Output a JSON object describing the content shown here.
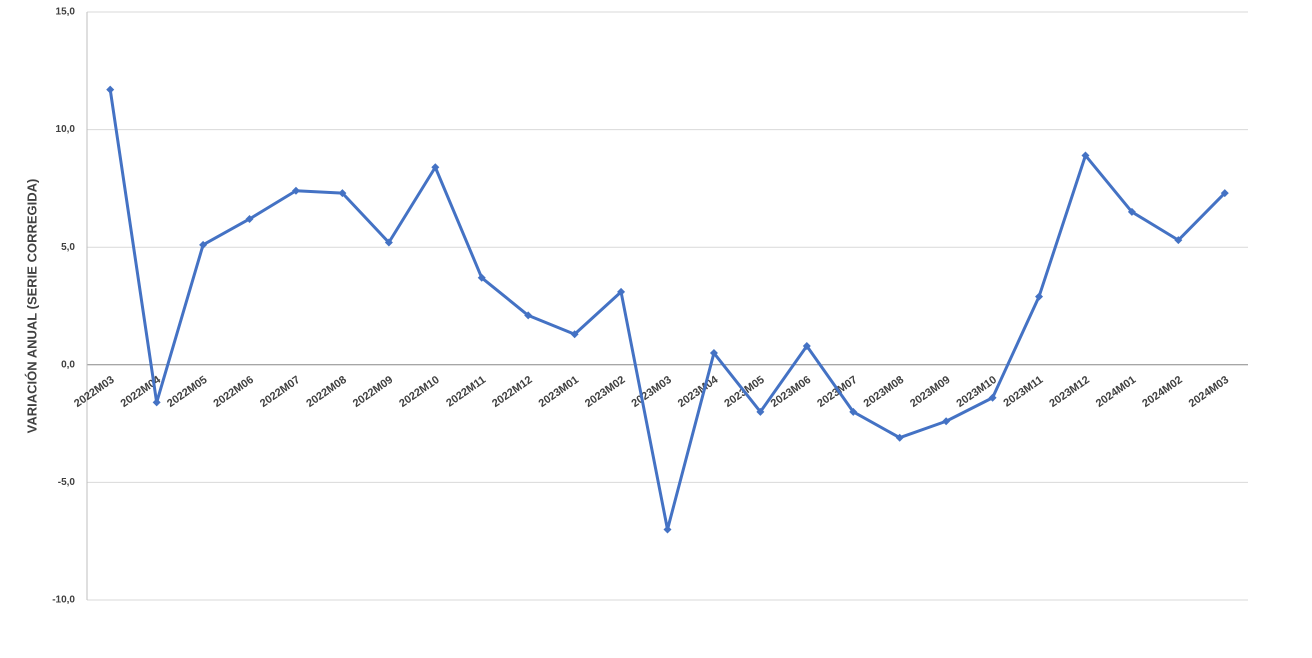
{
  "chart_data": {
    "type": "line",
    "y_label": "VARIACIÓN ANUAL (SERIE CORREGIDA)",
    "categories": [
      "2022M03",
      "2022M04",
      "2022M05",
      "2022M06",
      "2022M07",
      "2022M08",
      "2022M09",
      "2022M10",
      "2022M11",
      "2022M12",
      "2023M01",
      "2023M02",
      "2023M03",
      "2023M04",
      "2023M05",
      "2023M06",
      "2023M07",
      "2023M08",
      "2023M09",
      "2023M10",
      "2023M11",
      "2023M12",
      "2024M01",
      "2024M02",
      "2024M03"
    ],
    "values": [
      11.7,
      -1.6,
      5.1,
      6.2,
      7.4,
      7.3,
      5.2,
      8.4,
      3.7,
      2.1,
      1.3,
      3.1,
      -7.0,
      0.5,
      -2.0,
      0.8,
      -2.0,
      -3.1,
      -2.4,
      -1.4,
      2.9,
      8.9,
      6.5,
      5.3,
      7.3
    ],
    "color": "#4472c4",
    "ylim": [
      -10,
      15
    ],
    "yticks": [
      {
        "value": -10,
        "label": "-10,0"
      },
      {
        "value": -5,
        "label": "-5,0"
      },
      {
        "value": 0,
        "label": "0,0"
      },
      {
        "value": 5,
        "label": "5,0"
      },
      {
        "value": 10,
        "label": "10,0"
      },
      {
        "value": 15,
        "label": "15,0"
      }
    ],
    "grid": true
  }
}
